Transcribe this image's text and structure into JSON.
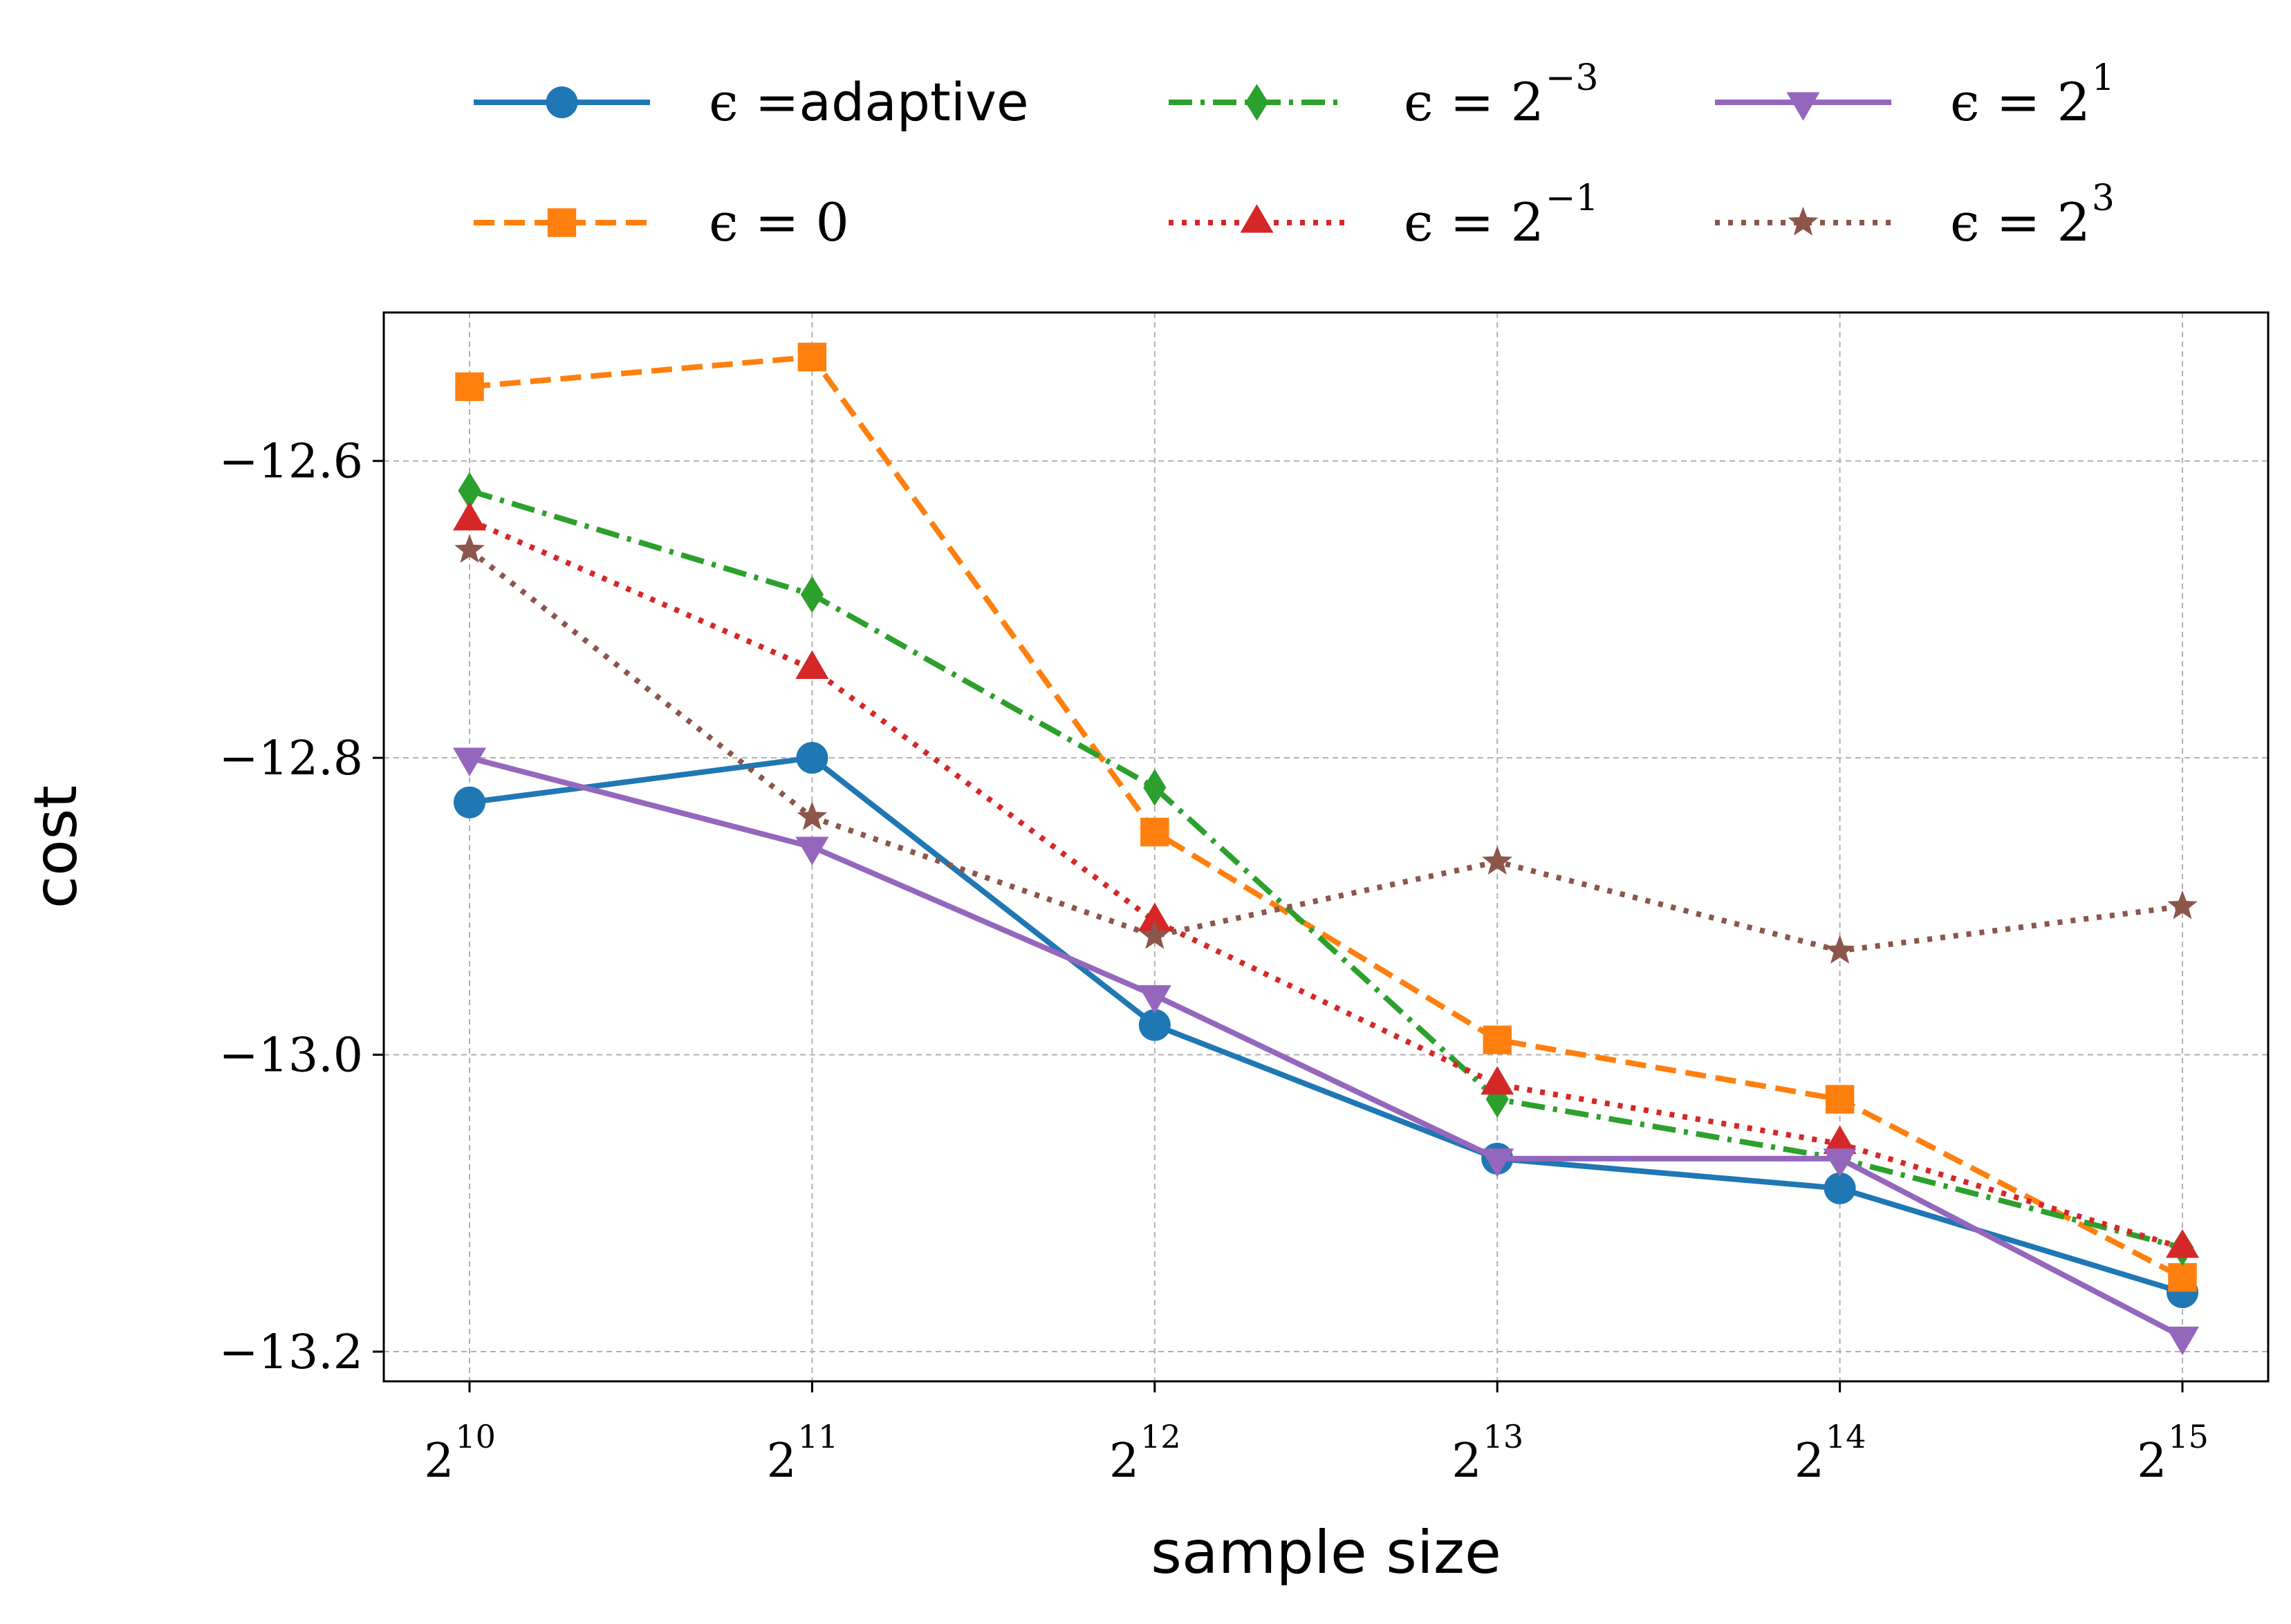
{
  "chart_data": {
    "type": "line",
    "xlabel": "sample size",
    "ylabel": "cost",
    "x_base": "2",
    "x_exponents": [
      "10",
      "11",
      "12",
      "13",
      "14",
      "15"
    ],
    "y_ticks": [
      -12.6,
      -12.8,
      -13.0,
      -13.2
    ],
    "y_tick_labels": [
      "−12.6",
      "−12.8",
      "−13.0",
      "−13.2"
    ],
    "ylim": [
      -13.22,
      -12.5
    ],
    "grid": true,
    "legend_position": "top, outside plot, 3 columns",
    "series": [
      {
        "legend_prefix": "ϵ =",
        "legend_value": "adaptive",
        "legend_exp": "",
        "color": "#1f77b4",
        "dash": "solid",
        "marker": "circle",
        "values": [
          -12.83,
          -12.8,
          -12.98,
          -13.07,
          -13.09,
          -13.16
        ]
      },
      {
        "legend_prefix": "ϵ = 0",
        "legend_value": "",
        "legend_exp": "",
        "color": "#ff7f0e",
        "dash": "dashed",
        "marker": "square",
        "values": [
          -12.55,
          -12.53,
          -12.85,
          -12.99,
          -13.03,
          -13.15
        ]
      },
      {
        "legend_prefix": "ϵ = 2",
        "legend_value": "",
        "legend_exp": "−3",
        "color": "#2ca02c",
        "dash": "dashdot",
        "marker": "diamond",
        "values": [
          -12.62,
          -12.69,
          -12.82,
          -13.03,
          -13.07,
          -13.13
        ]
      },
      {
        "legend_prefix": "ϵ = 2",
        "legend_value": "",
        "legend_exp": "−1",
        "color": "#d62728",
        "dash": "dotted",
        "marker": "triangle-up",
        "values": [
          -12.64,
          -12.74,
          -12.91,
          -13.02,
          -13.06,
          -13.13
        ]
      },
      {
        "legend_prefix": "ϵ = 2",
        "legend_value": "",
        "legend_exp": "1",
        "color": "#9467bd",
        "dash": "solid",
        "marker": "triangle-down",
        "values": [
          -12.8,
          -12.86,
          -12.96,
          -13.07,
          -13.07,
          -13.19
        ]
      },
      {
        "legend_prefix": "ϵ = 2",
        "legend_value": "",
        "legend_exp": "3",
        "color": "#8c564b",
        "dash": "dotted",
        "marker": "star",
        "values": [
          -12.66,
          -12.84,
          -12.92,
          -12.87,
          -12.93,
          -12.9
        ]
      }
    ]
  }
}
